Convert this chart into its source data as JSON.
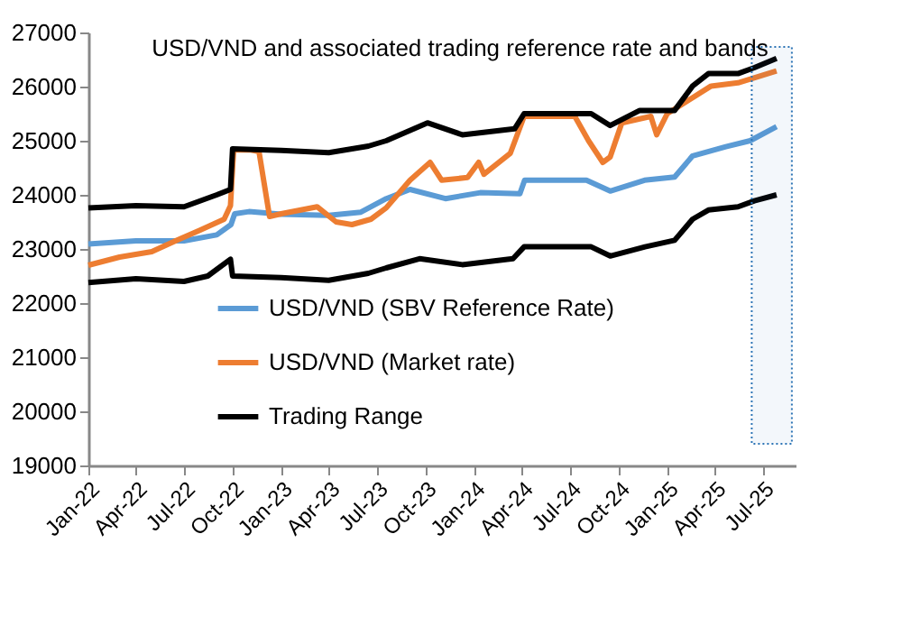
{
  "chart_data": {
    "type": "line",
    "title": "USD/VND and associated trading reference rate and bands",
    "ylim": [
      19000,
      27000
    ],
    "yticks": [
      19000,
      20000,
      21000,
      22000,
      23000,
      24000,
      25000,
      26000,
      27000
    ],
    "xlim": [
      "2022-01-01",
      "2025-09-01"
    ],
    "xticks": [
      {
        "value": "2022-01-01",
        "label": "Jan-22"
      },
      {
        "value": "2022-04-01",
        "label": "Apr-22"
      },
      {
        "value": "2022-07-01",
        "label": "Jul-22"
      },
      {
        "value": "2022-10-01",
        "label": "Oct-22"
      },
      {
        "value": "2023-01-01",
        "label": "Jan-23"
      },
      {
        "value": "2023-04-01",
        "label": "Apr-23"
      },
      {
        "value": "2023-07-01",
        "label": "Jul-23"
      },
      {
        "value": "2023-10-01",
        "label": "Oct-23"
      },
      {
        "value": "2024-01-01",
        "label": "Jan-24"
      },
      {
        "value": "2024-04-01",
        "label": "Apr-24"
      },
      {
        "value": "2024-07-01",
        "label": "Jul-24"
      },
      {
        "value": "2024-10-01",
        "label": "Oct-24"
      },
      {
        "value": "2025-01-01",
        "label": "Jan-25"
      },
      {
        "value": "2025-04-01",
        "label": "Apr-25"
      },
      {
        "value": "2025-07-01",
        "label": "Jul-25"
      }
    ],
    "grid": false,
    "legend": "bottom",
    "marker": "none",
    "line_style": "solid",
    "bands": [
      {
        "axis": "x",
        "from": "2025-06-10",
        "to": "2025-08-25",
        "color": "#2e75b6"
      }
    ],
    "series": [
      {
        "name": "USD/VND (SBV Reference Rate)",
        "color": "#5b9bd5",
        "x": [
          "2022-01-01",
          "2022-04-01",
          "2022-07-01",
          "2022-09-01",
          "2022-09-28",
          "2022-10-05",
          "2022-11-01",
          "2023-01-01",
          "2023-04-01",
          "2023-06-01",
          "2023-07-19",
          "2023-09-02",
          "2023-11-08",
          "2024-01-13",
          "2024-03-28",
          "2024-04-06",
          "2024-08-01",
          "2024-09-15",
          "2024-11-19",
          "2025-01-15",
          "2025-02-18",
          "2025-04-22",
          "2025-06-07",
          "2025-07-27"
        ],
        "values": [
          23090,
          23150,
          23150,
          23260,
          23450,
          23650,
          23690,
          23640,
          23620,
          23680,
          23930,
          24100,
          23930,
          24040,
          24020,
          24270,
          24270,
          24070,
          24270,
          24330,
          24720,
          24890,
          25000,
          25260
        ]
      },
      {
        "name": "USD/VND (Market rate)",
        "color": "#ed7d31",
        "x": [
          "2022-01-01",
          "2022-03-01",
          "2022-05-01",
          "2022-06-15",
          "2022-08-01",
          "2022-09-15",
          "2022-09-27",
          "2022-10-03",
          "2022-11-05",
          "2022-11-20",
          "2022-12-10",
          "2023-01-01",
          "2023-03-10",
          "2023-04-15",
          "2023-05-15",
          "2023-06-20",
          "2023-07-19",
          "2023-09-02",
          "2023-10-10",
          "2023-11-01",
          "2023-12-20",
          "2024-01-10",
          "2024-01-20",
          "2024-03-10",
          "2024-04-05",
          "2024-07-10",
          "2024-08-05",
          "2024-09-01",
          "2024-09-15",
          "2024-10-07",
          "2024-12-01",
          "2024-12-12",
          "2025-01-01",
          "2025-03-25",
          "2025-05-15",
          "2025-07-27"
        ],
        "values": [
          22700,
          22850,
          22950,
          23150,
          23350,
          23550,
          23800,
          24830,
          24830,
          24800,
          23600,
          23650,
          23780,
          23500,
          23450,
          23550,
          23760,
          24270,
          24600,
          24270,
          24320,
          24600,
          24380,
          24770,
          25450,
          25450,
          25000,
          24600,
          24700,
          25330,
          25450,
          25110,
          25500,
          26010,
          26070,
          26290
        ]
      },
      {
        "name": "Trading Range",
        "color": "#000000",
        "x": [
          "2022-01-01",
          "2022-04-01",
          "2022-07-01",
          "2022-09-01",
          "2022-09-27",
          "2022-10-01",
          "2023-01-01",
          "2023-04-01",
          "2023-06-15",
          "2023-07-19",
          "2023-10-05",
          "2023-12-10",
          "2024-03-18",
          "2024-04-05",
          "2024-08-10",
          "2024-09-15",
          "2024-11-10",
          "2025-01-15",
          "2025-02-18",
          "2025-03-20",
          "2025-05-15",
          "2025-06-15",
          "2025-07-27"
        ],
        "values": [
          23760,
          23800,
          23780,
          24000,
          24100,
          24850,
          24820,
          24780,
          24900,
          25000,
          25330,
          25110,
          25220,
          25500,
          25500,
          25280,
          25560,
          25560,
          26010,
          26240,
          26240,
          26350,
          26520
        ]
      },
      {
        "color": "#000000",
        "x": [
          "2022-01-01",
          "2022-04-01",
          "2022-07-01",
          "2022-08-15",
          "2022-09-27",
          "2022-10-01",
          "2023-01-01",
          "2023-04-01",
          "2023-06-15",
          "2023-07-19",
          "2023-09-20",
          "2023-12-10",
          "2024-03-15",
          "2024-04-05",
          "2024-08-10",
          "2024-09-15",
          "2024-11-20",
          "2025-01-15",
          "2025-02-18",
          "2025-03-20",
          "2025-05-15",
          "2025-06-15",
          "2025-07-27"
        ],
        "values": [
          22380,
          22450,
          22400,
          22500,
          22810,
          22500,
          22470,
          22420,
          22550,
          22650,
          22820,
          22710,
          22820,
          23040,
          23040,
          22870,
          23040,
          23160,
          23550,
          23720,
          23780,
          23890,
          24000
        ]
      }
    ]
  }
}
